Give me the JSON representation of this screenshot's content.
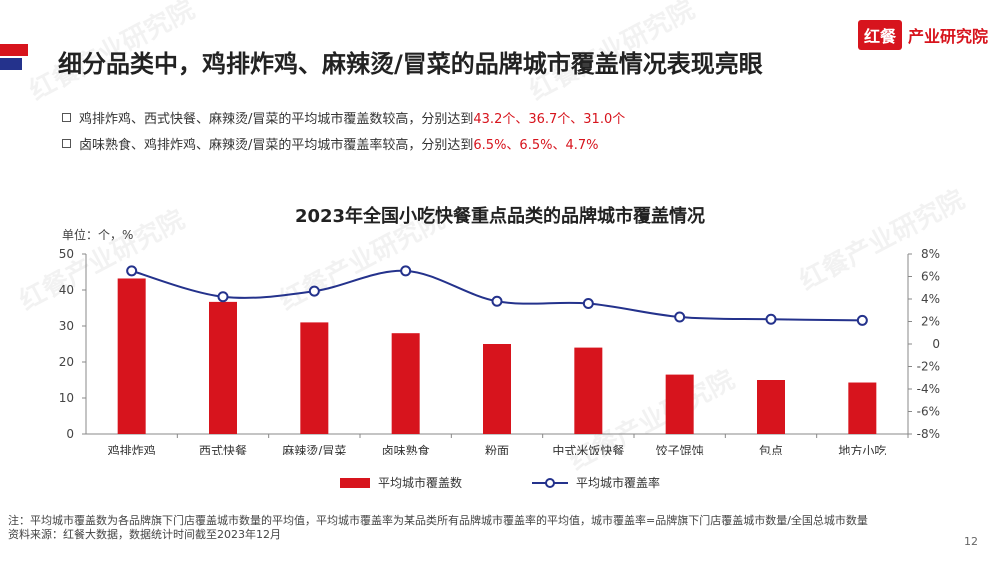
{
  "header": {
    "title": "细分品类中，鸡排炸鸡、麻辣烫/冒菜的品牌城市覆盖情况表现亮眼",
    "logo_mark": "红餐",
    "logo_text": "产业研究院",
    "accent_color": "#d7141d",
    "secondary_color": "#24328c"
  },
  "bullets": [
    {
      "text": "鸡排炸鸡、西式快餐、麻辣烫/冒菜的平均城市覆盖数较高，分别达到",
      "highlight": "43.2个、36.7个、31.0个"
    },
    {
      "text": "卤味熟食、鸡排炸鸡、麻辣烫/冒菜的平均城市覆盖率较高，分别达到",
      "highlight": "6.5%、6.5%、4.7%"
    }
  ],
  "chart_title": "2023年全国小吃快餐重点品类的品牌城市覆盖情况",
  "unit_label": "单位：个，%",
  "chart_data": {
    "type": "bar",
    "categories": [
      "鸡排炸鸡",
      "西式快餐",
      "麻辣烫/冒菜",
      "卤味熟食",
      "粉面",
      "中式米饭快餐",
      "饺子馄饨",
      "包点",
      "地方小吃"
    ],
    "series": [
      {
        "name": "平均城市覆盖数",
        "type": "bar",
        "axis": "left",
        "color": "#d7141d",
        "values": [
          43.2,
          36.7,
          31.0,
          28.0,
          25.0,
          24.0,
          16.5,
          15.0,
          14.3
        ]
      },
      {
        "name": "平均城市覆盖率",
        "type": "line",
        "axis": "right",
        "color": "#24328c",
        "values": [
          6.5,
          4.2,
          4.7,
          6.5,
          3.8,
          3.6,
          2.4,
          2.2,
          2.1
        ]
      }
    ],
    "left_axis": {
      "ylim": [
        0,
        50
      ],
      "ticks": [
        "0",
        "10",
        "20",
        "30",
        "40",
        "50"
      ]
    },
    "right_axis": {
      "ylim": [
        -8,
        8
      ],
      "ticks": [
        "-8%",
        "-6%",
        "-4%",
        "-2%",
        "0",
        "2%",
        "4%",
        "6%",
        "8%"
      ]
    },
    "grid": false,
    "legend_position": "bottom"
  },
  "notes": {
    "note": "注：平均城市覆盖数为各品牌旗下门店覆盖城市数量的平均值，平均城市覆盖率为某品类所有品牌城市覆盖率的平均值，城市覆盖率=品牌旗下门店覆盖城市数量/全国总城市数量",
    "source": "资料来源：红餐大数据，数据统计时间截至2023年12月"
  },
  "page_number": "12",
  "watermarks": [
    "红餐产业研究院",
    "红餐产业研究院",
    "红餐产业研究院",
    "红餐产业研究院",
    "红餐产业研究院",
    "红餐产业研究院"
  ]
}
